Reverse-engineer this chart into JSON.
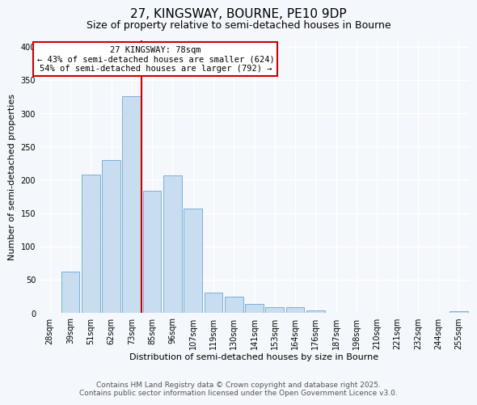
{
  "title": "27, KINGSWAY, BOURNE, PE10 9DP",
  "subtitle": "Size of property relative to semi-detached houses in Bourne",
  "xlabel": "Distribution of semi-detached houses by size in Bourne",
  "ylabel": "Number of semi-detached properties",
  "bin_labels": [
    "28sqm",
    "39sqm",
    "51sqm",
    "62sqm",
    "73sqm",
    "85sqm",
    "96sqm",
    "107sqm",
    "119sqm",
    "130sqm",
    "141sqm",
    "153sqm",
    "164sqm",
    "176sqm",
    "187sqm",
    "198sqm",
    "210sqm",
    "221sqm",
    "232sqm",
    "244sqm",
    "255sqm"
  ],
  "bar_heights": [
    0,
    62,
    208,
    230,
    325,
    183,
    207,
    157,
    31,
    24,
    14,
    9,
    9,
    4,
    0,
    0,
    0,
    0,
    0,
    0,
    3
  ],
  "bar_color": "#c9ddf0",
  "bar_edge_color": "#7bafd4",
  "marker_bin_index": 4,
  "marker_line_color": "#cc0000",
  "annotation_title": "27 KINGSWAY: 78sqm",
  "annotation_line1": "← 43% of semi-detached houses are smaller (624)",
  "annotation_line2": "54% of semi-detached houses are larger (792) →",
  "annotation_box_color": "#ffffff",
  "annotation_box_edge_color": "#cc0000",
  "ylim": [
    0,
    410
  ],
  "yticks": [
    0,
    50,
    100,
    150,
    200,
    250,
    300,
    350,
    400
  ],
  "footer_line1": "Contains HM Land Registry data © Crown copyright and database right 2025.",
  "footer_line2": "Contains public sector information licensed under the Open Government Licence v3.0.",
  "bg_color": "#f4f7fb",
  "plot_bg_color": "#f4f7fb",
  "grid_color": "#ffffff",
  "title_fontsize": 11,
  "subtitle_fontsize": 9,
  "axis_label_fontsize": 8,
  "tick_fontsize": 7,
  "annotation_fontsize": 7.5,
  "footer_fontsize": 6.5
}
